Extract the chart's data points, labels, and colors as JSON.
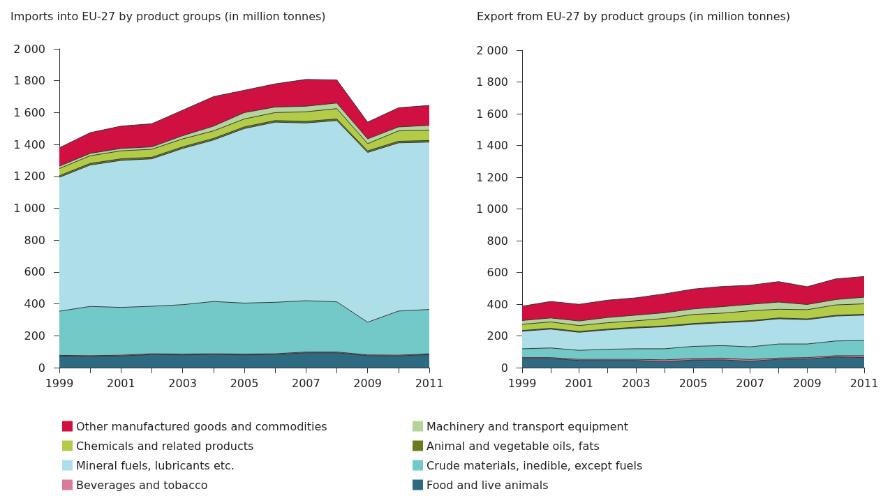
{
  "chart_data": [
    {
      "type": "area",
      "stacked": true,
      "title": "Imports into EU-27 by product groups (in million tonnes)",
      "x": [
        1999,
        2000,
        2001,
        2002,
        2003,
        2004,
        2005,
        2006,
        2007,
        2008,
        2009,
        2010,
        2011
      ],
      "xlim": [
        1999,
        2011
      ],
      "xticks": [
        1999,
        {
          "value": 2000,
          "label": null
        },
        2001,
        {
          "value": 2002,
          "label": null
        },
        2003,
        {
          "value": 2004,
          "label": null
        },
        2005,
        {
          "value": 2006,
          "label": null
        },
        2007,
        {
          "value": 2008,
          "label": null
        },
        2009,
        {
          "value": 2010,
          "label": null
        },
        2011
      ],
      "ylim": [
        0,
        2000
      ],
      "yticks": [
        0,
        200,
        400,
        600,
        800,
        {
          "value": 1000,
          "label": "1 000"
        },
        {
          "value": 1200,
          "label": "1 200"
        },
        {
          "value": 1400,
          "label": "1 400"
        },
        {
          "value": 1600,
          "label": "1 600"
        },
        {
          "value": 1800,
          "label": "1 800"
        },
        {
          "value": 2000,
          "label": "2 000"
        }
      ],
      "grid": false,
      "legend": "bottom",
      "series": [
        {
          "name": "Food and live animals",
          "color": "#2e6b82",
          "values": [
            72,
            70,
            73,
            82,
            80,
            82,
            80,
            82,
            93,
            93,
            75,
            73,
            82
          ]
        },
        {
          "name": "Beverages and tobacco",
          "color": "#dc7a9b",
          "values": [
            5,
            5,
            5,
            5,
            5,
            5,
            5,
            5,
            5,
            5,
            5,
            5,
            5
          ]
        },
        {
          "name": "Crude materials, inedible, except fuels",
          "color": "#73c9c7",
          "values": [
            277,
            309,
            300,
            298,
            310,
            328,
            320,
            323,
            322,
            315,
            205,
            277,
            278
          ]
        },
        {
          "name": "Mineral fuels, lubricants etc.",
          "color": "#aedfe9",
          "values": [
            840,
            887,
            922,
            925,
            980,
            1013,
            1095,
            1130,
            1115,
            1137,
            1065,
            1055,
            1050
          ]
        },
        {
          "name": "Animal and vegetable oils, fats",
          "color": "#6b7a1e",
          "values": [
            10,
            10,
            10,
            10,
            10,
            10,
            10,
            10,
            10,
            10,
            10,
            10,
            10
          ]
        },
        {
          "name": "Chemicals and related products",
          "color": "#b3cc48",
          "values": [
            45,
            48,
            50,
            50,
            50,
            47,
            50,
            50,
            60,
            65,
            45,
            65,
            65
          ]
        },
        {
          "name": "Machinery and transport equipment",
          "color": "#b5d39d",
          "values": [
            15,
            15,
            15,
            15,
            20,
            30,
            40,
            35,
            35,
            35,
            30,
            25,
            30
          ]
        },
        {
          "name": "Other manufactured goods and commodities",
          "color": "#d01040",
          "values": [
            115,
            130,
            140,
            145,
            160,
            185,
            140,
            145,
            168,
            145,
            105,
            120,
            125
          ]
        }
      ]
    },
    {
      "type": "area",
      "stacked": true,
      "title": "Export from EU-27 by product groups (in million tonnes)",
      "x": [
        1999,
        2000,
        2001,
        2002,
        2003,
        2004,
        2005,
        2006,
        2007,
        2008,
        2009,
        2010,
        2011
      ],
      "xlim": [
        1999,
        2011
      ],
      "xticks": [
        1999,
        {
          "value": 2000,
          "label": null
        },
        2001,
        {
          "value": 2002,
          "label": null
        },
        2003,
        {
          "value": 2004,
          "label": null
        },
        2005,
        {
          "value": 2006,
          "label": null
        },
        2007,
        {
          "value": 2008,
          "label": null
        },
        2009,
        {
          "value": 2010,
          "label": null
        },
        2011
      ],
      "ylim": [
        0,
        2000
      ],
      "yticks": [
        0,
        200,
        400,
        600,
        800,
        {
          "value": 1000,
          "label": "1 000"
        },
        {
          "value": 1200,
          "label": "1 200"
        },
        {
          "value": 1400,
          "label": "1 400"
        },
        {
          "value": 1600,
          "label": "1 600"
        },
        {
          "value": 1800,
          "label": "1 800"
        },
        {
          "value": 2000,
          "label": "2 000"
        }
      ],
      "grid": false,
      "series": [
        {
          "name": "Food and live animals",
          "color": "#2e6b82",
          "values": [
            57,
            57,
            45,
            45,
            45,
            37,
            48,
            49,
            40,
            52,
            55,
            67,
            63
          ]
        },
        {
          "name": "Beverages and tobacco",
          "color": "#dc7a9b",
          "values": [
            6,
            6,
            7,
            7,
            7,
            12,
            9,
            11,
            11,
            8,
            8,
            8,
            12
          ]
        },
        {
          "name": "Crude materials, inedible, except fuels",
          "color": "#73c9c7",
          "values": [
            56,
            61,
            57,
            64,
            67,
            70,
            77,
            79,
            80,
            89,
            86,
            93,
            96
          ]
        },
        {
          "name": "Mineral fuels, lubricants etc.",
          "color": "#aedfe9",
          "values": [
            110,
            119,
            114,
            122,
            131,
            139,
            139,
            144,
            160,
            159,
            153,
            157,
            160
          ]
        },
        {
          "name": "Animal and vegetable oils, fats",
          "color": "#6b7a1e",
          "values": [
            5,
            5,
            5,
            5,
            5,
            5,
            5,
            5,
            5,
            5,
            5,
            5,
            5
          ]
        },
        {
          "name": "Chemicals and related products",
          "color": "#b3cc48",
          "values": [
            39,
            40,
            37,
            40,
            40,
            47,
            57,
            55,
            62,
            55,
            58,
            65,
            66
          ]
        },
        {
          "name": "Machinery and transport equipment",
          "color": "#b5d39d",
          "values": [
            24,
            25,
            29,
            33,
            36,
            36,
            35,
            41,
            41,
            45,
            33,
            34,
            42
          ]
        },
        {
          "name": "Other manufactured goods and commodities",
          "color": "#d01040",
          "values": [
            90,
            104,
            105,
            109,
            109,
            119,
            125,
            127,
            120,
            129,
            112,
            130,
            130
          ]
        }
      ]
    }
  ]
}
